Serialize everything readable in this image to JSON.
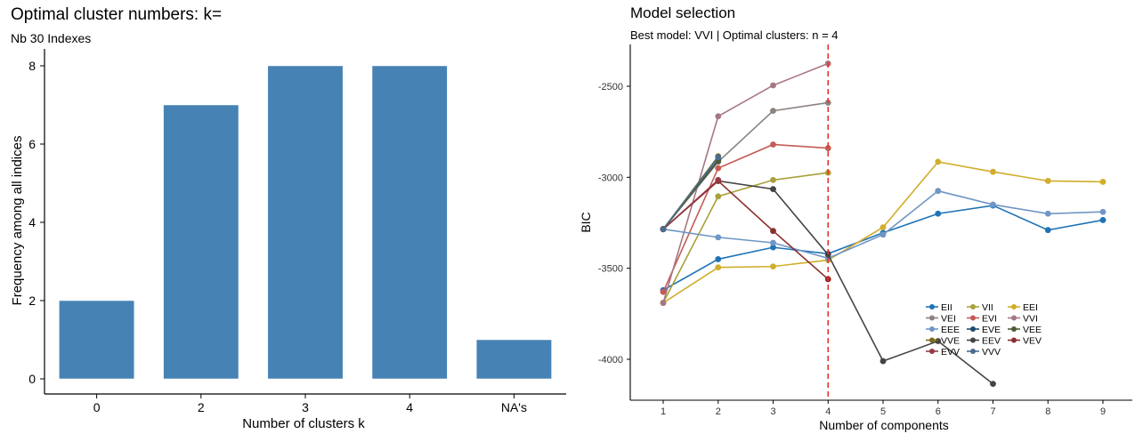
{
  "chart_data": [
    {
      "type": "bar",
      "title": "Optimal cluster numbers: k=",
      "subtitle": "Nb 30 Indexes",
      "xlabel": "Number of clusters k",
      "ylabel": "Frequency among all indices",
      "categories": [
        "0",
        "2",
        "3",
        "4",
        "NA's"
      ],
      "values": [
        2,
        7,
        8,
        8,
        1
      ],
      "ylim": [
        0,
        8.5
      ],
      "yticks": [
        "0",
        "2",
        "4",
        "6",
        "8"
      ],
      "grid": false,
      "bar_color": "#4682b4"
    },
    {
      "type": "line",
      "title": "Model selection",
      "subtitle": "Best model: VVI | Optimal clusters: n = 4",
      "xlabel": "Number of components",
      "ylabel": "BIC",
      "xticks": [
        "1",
        "2",
        "3",
        "4",
        "5",
        "6",
        "7",
        "8",
        "9"
      ],
      "yticks": [
        "-2500",
        "-3000",
        "-3500",
        "-4000"
      ],
      "xlim": [
        0.4,
        9.6
      ],
      "ylim": [
        -4230,
        -2220
      ],
      "grid": false,
      "legend_position": "bottom-right",
      "vline": {
        "x": 4,
        "color": "#e8302c"
      },
      "series": [
        {
          "name": "EII",
          "color": "#1f73b6",
          "x": [
            1,
            2,
            3,
            4,
            5,
            6,
            7,
            8,
            9
          ],
          "y": [
            -3620,
            -3450,
            -3385,
            -3420,
            -3305,
            -3200,
            -3155,
            -3290,
            -3235
          ]
        },
        {
          "name": "VII",
          "color": "#a8a13a",
          "x": [
            1,
            2,
            3,
            4
          ],
          "y": [
            -3690,
            -3105,
            -3015,
            -2975
          ]
        },
        {
          "name": "EEI",
          "color": "#d1ad2b",
          "x": [
            1,
            2,
            3,
            4,
            5,
            6,
            7,
            8,
            9
          ],
          "y": [
            -3690,
            -3495,
            -3490,
            -3455,
            -3275,
            -2915,
            -2970,
            -3020,
            -3025
          ]
        },
        {
          "name": "VEI",
          "color": "#8b8380",
          "x": [
            1,
            2,
            3,
            4
          ],
          "y": [
            -3285,
            -2915,
            -2635,
            -2590
          ]
        },
        {
          "name": "EVI",
          "color": "#c55b55",
          "x": [
            1,
            2,
            3,
            4
          ],
          "y": [
            -3630,
            -2950,
            -2820,
            -2840
          ]
        },
        {
          "name": "VVI",
          "color": "#a77683",
          "x": [
            1,
            2,
            3,
            4
          ],
          "y": [
            -3690,
            -2665,
            -2495,
            -2375
          ]
        },
        {
          "name": "EEE",
          "color": "#6f96c4",
          "x": [
            1,
            2,
            3,
            4,
            5,
            6,
            7,
            8,
            9
          ],
          "y": [
            -3285,
            -3330,
            -3360,
            -3445,
            -3315,
            -3075,
            -3150,
            -3200,
            -3190
          ]
        },
        {
          "name": "EVE",
          "color": "#1f4c6e",
          "x": [
            1,
            2
          ],
          "y": [
            -3285,
            -2905
          ]
        },
        {
          "name": "VEE",
          "color": "#4f5b36",
          "x": [
            1,
            2
          ],
          "y": [
            -3285,
            -2910
          ]
        },
        {
          "name": "VVE",
          "color": "#7a6a16",
          "x": [
            1,
            2
          ],
          "y": [
            -3285,
            -2885
          ]
        },
        {
          "name": "EEV",
          "color": "#444444",
          "x": [
            1,
            2,
            3,
            4,
            5,
            6,
            7
          ],
          "y": [
            -3285,
            -3020,
            -3065,
            -3425,
            -4010,
            -3900,
            -4135
          ]
        },
        {
          "name": "VEV",
          "color": "#8b2e2e",
          "x": [
            1,
            2,
            3,
            4
          ],
          "y": [
            -3285,
            -3020,
            -3295,
            -3560
          ]
        },
        {
          "name": "EVV",
          "color": "#953a44",
          "x": [
            1,
            2
          ],
          "y": [
            -3285,
            -3015
          ]
        },
        {
          "name": "VVV",
          "color": "#4a6c8e",
          "x": [
            1,
            2
          ],
          "y": [
            -3285,
            -2890
          ]
        }
      ]
    }
  ]
}
